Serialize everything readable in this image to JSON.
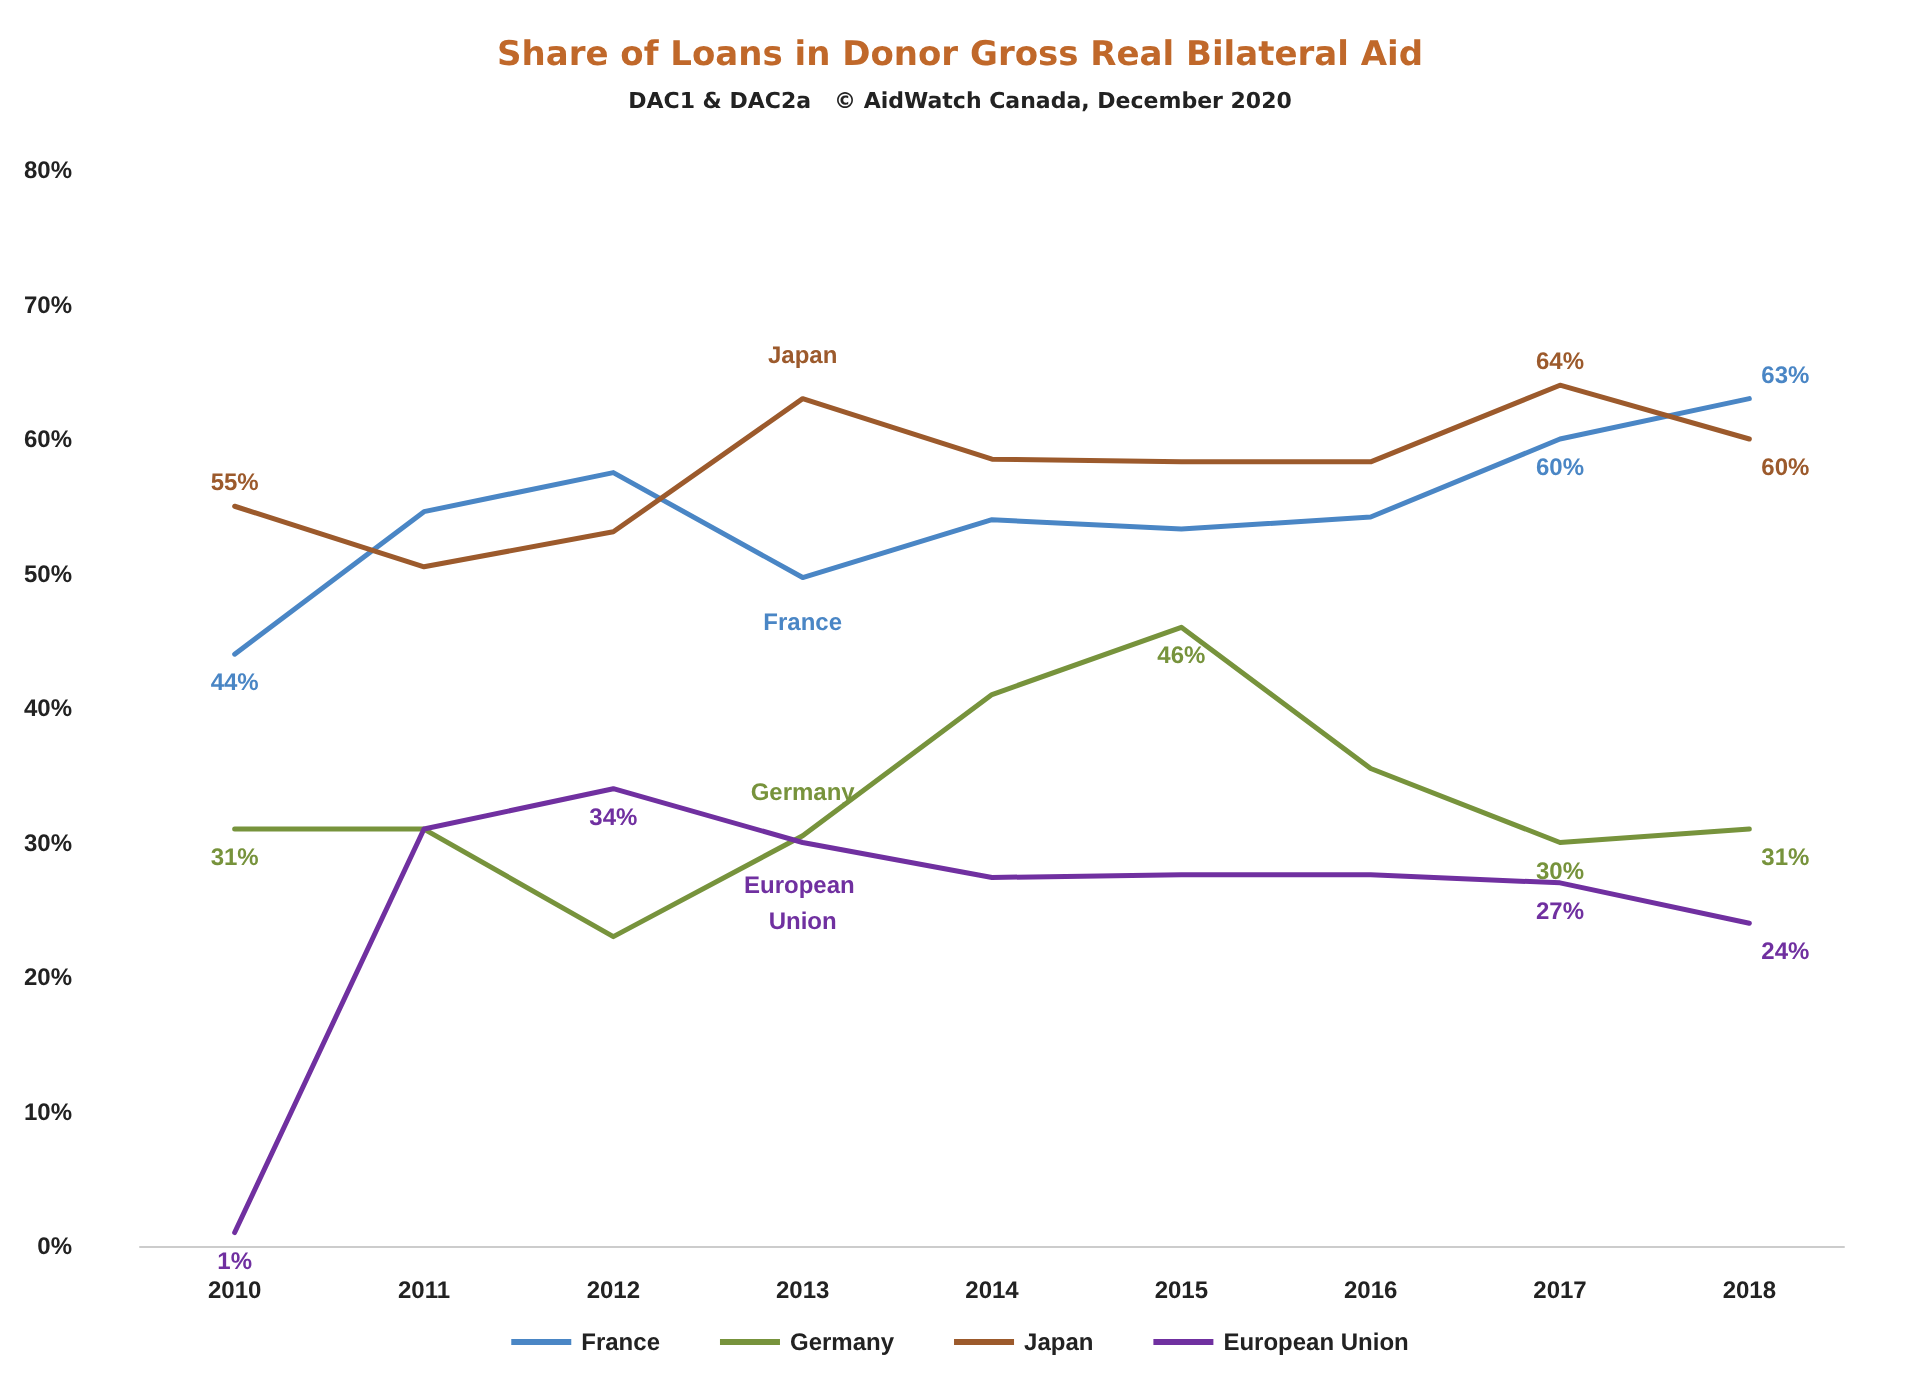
{
  "chart_data": {
    "type": "line",
    "title": "Share of Loans in Donor Gross Real Bilateral Aid",
    "subtitle": "DAC1 & DAC2a   © AidWatch Canada, December 2020",
    "categories": [
      "2010",
      "2011",
      "2012",
      "2013",
      "2014",
      "2015",
      "2016",
      "2017",
      "2018"
    ],
    "series": [
      {
        "name": "France",
        "color": "#4a86c5",
        "values": [
          44,
          54.6,
          57.5,
          49.7,
          54,
          53.3,
          54.2,
          60,
          63
        ],
        "value_labels": [
          "44%",
          null,
          null,
          null,
          null,
          null,
          null,
          "60%",
          "63%"
        ]
      },
      {
        "name": "Germany",
        "color": "#77933c",
        "values": [
          31,
          31,
          23,
          30.5,
          41,
          46,
          35.5,
          30,
          31
        ],
        "value_labels": [
          "31%",
          null,
          null,
          null,
          null,
          "46%",
          null,
          "30%",
          "31%"
        ]
      },
      {
        "name": "Japan",
        "color": "#9c5a2c",
        "values": [
          55,
          50.5,
          53.1,
          63,
          58.5,
          58.3,
          58.3,
          64,
          60
        ],
        "value_labels": [
          "55%",
          null,
          null,
          null,
          null,
          null,
          null,
          "64%",
          "60%"
        ]
      },
      {
        "name": "European Union",
        "color": "#7030a0",
        "values": [
          1,
          31,
          34,
          30,
          27.4,
          27.6,
          27.6,
          27,
          24
        ],
        "value_labels": [
          "1%",
          null,
          "34%",
          null,
          null,
          null,
          null,
          "27%",
          "24%"
        ]
      }
    ],
    "ylim": [
      0,
      80
    ],
    "yticks": [
      {
        "value": 0,
        "label": "0%"
      },
      {
        "value": 10,
        "label": "10%"
      },
      {
        "value": 20,
        "label": "20%"
      },
      {
        "value": 30,
        "label": "30%"
      },
      {
        "value": 40,
        "label": "40%"
      },
      {
        "value": 50,
        "label": "50%"
      },
      {
        "value": 60,
        "label": "60%"
      },
      {
        "value": 70,
        "label": "70%"
      },
      {
        "value": 80,
        "label": "80%"
      }
    ],
    "annotations": [
      {
        "text": "Japan",
        "x": "2013",
        "y": 63
      },
      {
        "text": "France",
        "x": "2013",
        "y": 49.7
      },
      {
        "text": "Germany",
        "x": "2013",
        "y": 30.5
      },
      {
        "text": "European Union",
        "x": "2013",
        "y": 30
      }
    ],
    "legend": "bottom",
    "grid": false,
    "marker": "none",
    "line_style": "solid"
  }
}
